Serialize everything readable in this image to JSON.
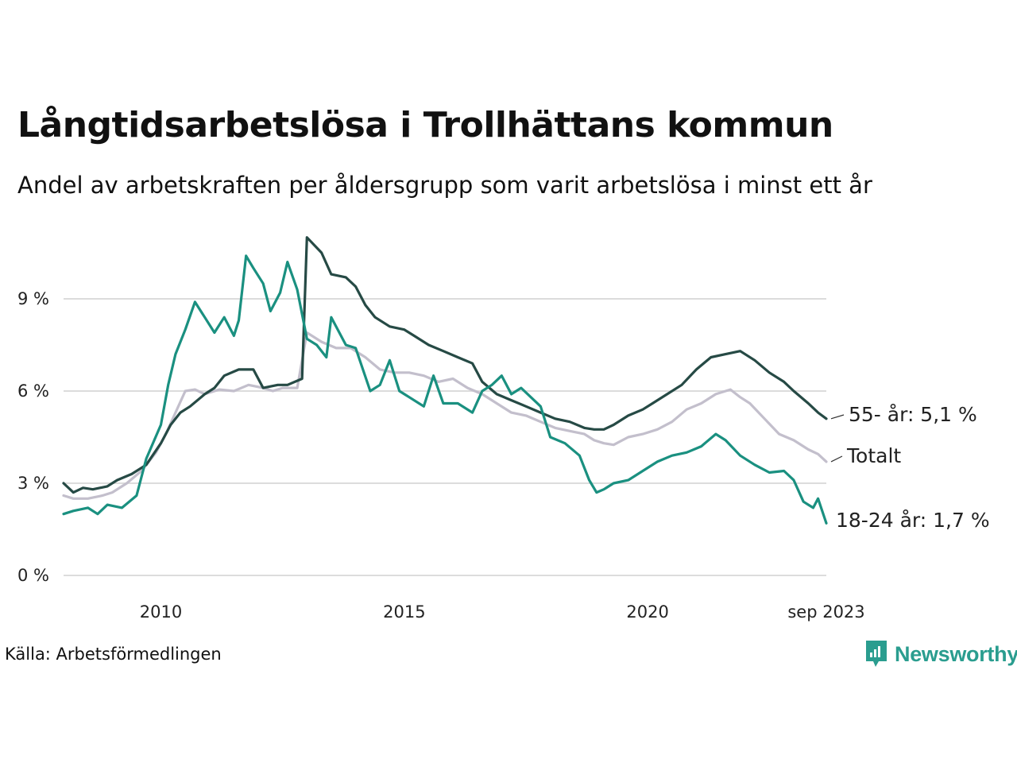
{
  "brand": {
    "name": "Newsworthy"
  },
  "source": "Källa: Arbetsförmedlingen",
  "chart_data": {
    "type": "line",
    "title": "Långtidsarbetslösa i Trollhättans kommun",
    "subtitle": "Andel av arbetskraften per åldersgrupp som varit arbetslösa i minst ett år",
    "xlabel": "",
    "ylabel": "",
    "x_range": [
      2008.0,
      2023.67
    ],
    "ylim": [
      0,
      11.5
    ],
    "yticks": [
      {
        "value": 0,
        "label": "0 %"
      },
      {
        "value": 3,
        "label": "3 %"
      },
      {
        "value": 6,
        "label": "6 %"
      },
      {
        "value": 9,
        "label": "9 %"
      }
    ],
    "xticks": [
      {
        "value": 2010,
        "label": "2010"
      },
      {
        "value": 2015,
        "label": "2015"
      },
      {
        "value": 2020,
        "label": "2020"
      },
      {
        "value": 2023.67,
        "label": "sep 2023"
      }
    ],
    "grid": true,
    "legend": "direct labels at line ends (right)",
    "series": [
      {
        "name": "Totalt",
        "end_label": "Totalt",
        "color": "#c3bfcc",
        "points": [
          [
            2008.0,
            2.6
          ],
          [
            2008.2,
            2.5
          ],
          [
            2008.5,
            2.5
          ],
          [
            2008.8,
            2.6
          ],
          [
            2009.0,
            2.7
          ],
          [
            2009.3,
            3.0
          ],
          [
            2009.6,
            3.4
          ],
          [
            2009.9,
            4.0
          ],
          [
            2010.1,
            4.6
          ],
          [
            2010.3,
            5.3
          ],
          [
            2010.5,
            6.0
          ],
          [
            2010.7,
            6.05
          ],
          [
            2010.9,
            5.9
          ],
          [
            2011.2,
            6.05
          ],
          [
            2011.5,
            6.0
          ],
          [
            2011.8,
            6.2
          ],
          [
            2012.1,
            6.1
          ],
          [
            2012.3,
            6.0
          ],
          [
            2012.5,
            6.1
          ],
          [
            2012.8,
            6.1
          ],
          [
            2013.0,
            7.9
          ],
          [
            2013.3,
            7.6
          ],
          [
            2013.6,
            7.4
          ],
          [
            2013.9,
            7.4
          ],
          [
            2014.2,
            7.1
          ],
          [
            2014.5,
            6.7
          ],
          [
            2014.8,
            6.6
          ],
          [
            2015.1,
            6.6
          ],
          [
            2015.4,
            6.5
          ],
          [
            2015.7,
            6.3
          ],
          [
            2016.0,
            6.4
          ],
          [
            2016.3,
            6.1
          ],
          [
            2016.6,
            5.9
          ],
          [
            2016.9,
            5.6
          ],
          [
            2017.2,
            5.3
          ],
          [
            2017.5,
            5.2
          ],
          [
            2017.8,
            5.0
          ],
          [
            2018.1,
            4.8
          ],
          [
            2018.4,
            4.7
          ],
          [
            2018.7,
            4.6
          ],
          [
            2018.9,
            4.4
          ],
          [
            2019.1,
            4.3
          ],
          [
            2019.3,
            4.25
          ],
          [
            2019.6,
            4.5
          ],
          [
            2019.9,
            4.6
          ],
          [
            2020.2,
            4.75
          ],
          [
            2020.5,
            5.0
          ],
          [
            2020.8,
            5.4
          ],
          [
            2021.1,
            5.6
          ],
          [
            2021.4,
            5.9
          ],
          [
            2021.7,
            6.05
          ],
          [
            2021.9,
            5.8
          ],
          [
            2022.1,
            5.6
          ],
          [
            2022.4,
            5.1
          ],
          [
            2022.7,
            4.6
          ],
          [
            2023.0,
            4.4
          ],
          [
            2023.3,
            4.1
          ],
          [
            2023.5,
            3.95
          ],
          [
            2023.67,
            3.7
          ]
        ]
      },
      {
        "name": "55- år",
        "end_label": "55- år: 5,1 %",
        "color": "#264a45",
        "points": [
          [
            2008.0,
            3.0
          ],
          [
            2008.2,
            2.7
          ],
          [
            2008.4,
            2.85
          ],
          [
            2008.6,
            2.8
          ],
          [
            2008.9,
            2.9
          ],
          [
            2009.1,
            3.1
          ],
          [
            2009.4,
            3.3
          ],
          [
            2009.7,
            3.6
          ],
          [
            2010.0,
            4.3
          ],
          [
            2010.2,
            4.9
          ],
          [
            2010.4,
            5.3
          ],
          [
            2010.6,
            5.5
          ],
          [
            2010.9,
            5.9
          ],
          [
            2011.1,
            6.1
          ],
          [
            2011.3,
            6.5
          ],
          [
            2011.6,
            6.7
          ],
          [
            2011.9,
            6.7
          ],
          [
            2012.1,
            6.1
          ],
          [
            2012.4,
            6.2
          ],
          [
            2012.6,
            6.2
          ],
          [
            2012.9,
            6.4
          ],
          [
            2013.0,
            11.0
          ],
          [
            2013.3,
            10.5
          ],
          [
            2013.5,
            9.8
          ],
          [
            2013.8,
            9.7
          ],
          [
            2014.0,
            9.4
          ],
          [
            2014.2,
            8.8
          ],
          [
            2014.4,
            8.4
          ],
          [
            2014.7,
            8.1
          ],
          [
            2015.0,
            8.0
          ],
          [
            2015.2,
            7.8
          ],
          [
            2015.5,
            7.5
          ],
          [
            2015.8,
            7.3
          ],
          [
            2016.1,
            7.1
          ],
          [
            2016.4,
            6.9
          ],
          [
            2016.6,
            6.3
          ],
          [
            2016.9,
            5.9
          ],
          [
            2017.2,
            5.7
          ],
          [
            2017.5,
            5.5
          ],
          [
            2017.8,
            5.3
          ],
          [
            2018.1,
            5.1
          ],
          [
            2018.4,
            5.0
          ],
          [
            2018.7,
            4.8
          ],
          [
            2018.9,
            4.75
          ],
          [
            2019.1,
            4.75
          ],
          [
            2019.3,
            4.9
          ],
          [
            2019.6,
            5.2
          ],
          [
            2019.9,
            5.4
          ],
          [
            2020.1,
            5.6
          ],
          [
            2020.4,
            5.9
          ],
          [
            2020.7,
            6.2
          ],
          [
            2021.0,
            6.7
          ],
          [
            2021.3,
            7.1
          ],
          [
            2021.6,
            7.2
          ],
          [
            2021.9,
            7.3
          ],
          [
            2022.2,
            7.0
          ],
          [
            2022.5,
            6.6
          ],
          [
            2022.8,
            6.3
          ],
          [
            2023.0,
            6.0
          ],
          [
            2023.3,
            5.6
          ],
          [
            2023.5,
            5.3
          ],
          [
            2023.67,
            5.1
          ]
        ]
      },
      {
        "name": "18-24 år",
        "end_label": "18-24 år: 1,7 %",
        "color": "#1a9080",
        "points": [
          [
            2008.0,
            2.0
          ],
          [
            2008.2,
            2.1
          ],
          [
            2008.5,
            2.2
          ],
          [
            2008.7,
            2.0
          ],
          [
            2008.9,
            2.3
          ],
          [
            2009.2,
            2.2
          ],
          [
            2009.5,
            2.6
          ],
          [
            2009.7,
            3.8
          ],
          [
            2010.0,
            4.9
          ],
          [
            2010.15,
            6.2
          ],
          [
            2010.3,
            7.2
          ],
          [
            2010.5,
            8.0
          ],
          [
            2010.7,
            8.9
          ],
          [
            2010.9,
            8.4
          ],
          [
            2011.1,
            7.9
          ],
          [
            2011.3,
            8.4
          ],
          [
            2011.5,
            7.8
          ],
          [
            2011.6,
            8.3
          ],
          [
            2011.75,
            10.4
          ],
          [
            2011.9,
            10.0
          ],
          [
            2012.1,
            9.5
          ],
          [
            2012.25,
            8.6
          ],
          [
            2012.45,
            9.2
          ],
          [
            2012.6,
            10.2
          ],
          [
            2012.8,
            9.3
          ],
          [
            2013.0,
            7.7
          ],
          [
            2013.2,
            7.5
          ],
          [
            2013.4,
            7.1
          ],
          [
            2013.5,
            8.4
          ],
          [
            2013.8,
            7.5
          ],
          [
            2014.0,
            7.4
          ],
          [
            2014.3,
            6.0
          ],
          [
            2014.5,
            6.2
          ],
          [
            2014.7,
            7.0
          ],
          [
            2014.9,
            6.0
          ],
          [
            2015.1,
            5.8
          ],
          [
            2015.4,
            5.5
          ],
          [
            2015.6,
            6.5
          ],
          [
            2015.8,
            5.6
          ],
          [
            2016.1,
            5.6
          ],
          [
            2016.4,
            5.3
          ],
          [
            2016.6,
            6.0
          ],
          [
            2016.8,
            6.2
          ],
          [
            2017.0,
            6.5
          ],
          [
            2017.2,
            5.9
          ],
          [
            2017.4,
            6.1
          ],
          [
            2017.6,
            5.8
          ],
          [
            2017.8,
            5.5
          ],
          [
            2018.0,
            4.5
          ],
          [
            2018.3,
            4.3
          ],
          [
            2018.6,
            3.9
          ],
          [
            2018.8,
            3.1
          ],
          [
            2018.95,
            2.7
          ],
          [
            2019.1,
            2.8
          ],
          [
            2019.3,
            3.0
          ],
          [
            2019.6,
            3.1
          ],
          [
            2019.9,
            3.4
          ],
          [
            2020.2,
            3.7
          ],
          [
            2020.5,
            3.9
          ],
          [
            2020.8,
            4.0
          ],
          [
            2021.1,
            4.2
          ],
          [
            2021.4,
            4.6
          ],
          [
            2021.6,
            4.4
          ],
          [
            2021.9,
            3.9
          ],
          [
            2022.2,
            3.6
          ],
          [
            2022.5,
            3.35
          ],
          [
            2022.8,
            3.4
          ],
          [
            2023.0,
            3.1
          ],
          [
            2023.2,
            2.4
          ],
          [
            2023.4,
            2.2
          ],
          [
            2023.5,
            2.5
          ],
          [
            2023.67,
            1.7
          ]
        ]
      }
    ]
  }
}
